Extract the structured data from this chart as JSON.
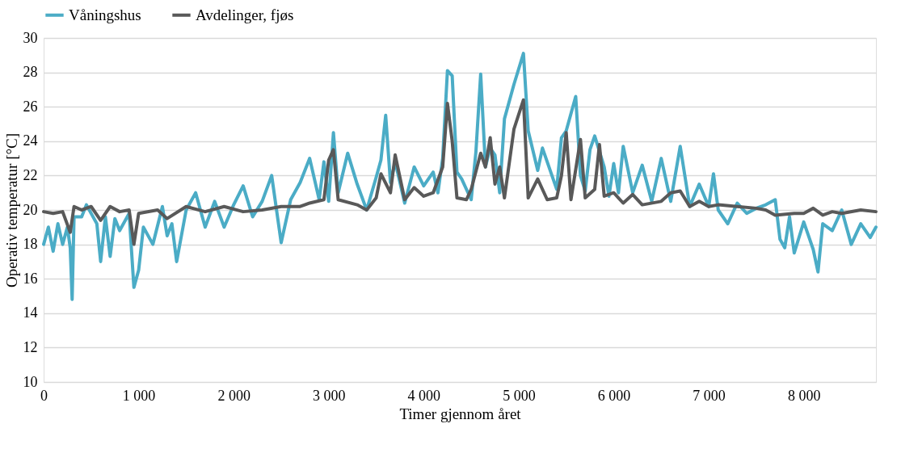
{
  "chart_data": {
    "type": "line",
    "xlabel": "Timer gjennom året",
    "ylabel": "Operativ temperatur [°C]",
    "xlim": [
      0,
      8760
    ],
    "xticks": [
      0,
      {
        "value": 1000,
        "label": "1 000"
      },
      {
        "value": 2000,
        "label": "2 000"
      },
      {
        "value": 3000,
        "label": "3 000"
      },
      {
        "value": 4000,
        "label": "4 000"
      },
      {
        "value": 5000,
        "label": "5 000"
      },
      {
        "value": 6000,
        "label": "6 000"
      },
      {
        "value": 7000,
        "label": "7 000"
      },
      {
        "value": 8000,
        "label": "8 000"
      }
    ],
    "ylim": [
      10,
      30
    ],
    "yticks": [
      10,
      12,
      14,
      16,
      18,
      20,
      22,
      24,
      26,
      28,
      30
    ],
    "grid": "y",
    "legend": "top",
    "marker": "none",
    "line_style": "solid",
    "x": [
      0,
      50,
      100,
      150,
      200,
      250,
      280,
      300,
      320,
      400,
      450,
      560,
      600,
      650,
      700,
      750,
      800,
      900,
      950,
      1000,
      1050,
      1150,
      1250,
      1300,
      1350,
      1400,
      1500,
      1600,
      1700,
      1800,
      1900,
      2000,
      2100,
      2200,
      2300,
      2400,
      2500,
      2600,
      2700,
      2800,
      2900,
      2950,
      3000,
      3050,
      3100,
      3200,
      3300,
      3400,
      3500,
      3550,
      3600,
      3650,
      3700,
      3800,
      3900,
      4000,
      4100,
      4150,
      4200,
      4250,
      4300,
      4350,
      4400,
      4500,
      4550,
      4600,
      4650,
      4700,
      4750,
      4800,
      4850,
      4950,
      5050,
      5100,
      5200,
      5250,
      5350,
      5400,
      5450,
      5500,
      5600,
      5650,
      5700,
      5750,
      5800,
      5900,
      5950,
      6000,
      6050,
      6100,
      6200,
      6300,
      6400,
      6500,
      6600,
      6700,
      6800,
      6900,
      7000,
      7050,
      7100,
      7200,
      7300,
      7400,
      7500,
      7600,
      7700,
      7750,
      7800,
      7850,
      7900,
      8000,
      8050,
      8100,
      8150,
      8200,
      8300,
      8400,
      8500,
      8600,
      8700,
      8760
    ],
    "series": [
      {
        "name": "Våningshus",
        "color": "#4bacc6",
        "values": [
          18.0,
          19.0,
          17.6,
          19.2,
          18.0,
          19.0,
          17.8,
          14.8,
          19.6,
          19.6,
          20.3,
          19.2,
          17.0,
          19.6,
          17.3,
          19.5,
          18.8,
          19.8,
          15.5,
          16.5,
          19.0,
          18.0,
          20.2,
          18.5,
          19.2,
          17.0,
          20.0,
          21.0,
          19.0,
          20.5,
          19.0,
          20.3,
          21.4,
          19.6,
          20.5,
          22.0,
          18.1,
          20.6,
          21.6,
          23.0,
          20.6,
          22.8,
          20.5,
          24.5,
          21.0,
          23.3,
          21.5,
          20.0,
          21.9,
          22.9,
          25.5,
          21.6,
          22.8,
          20.4,
          22.5,
          21.4,
          22.2,
          21.0,
          23.0,
          28.1,
          27.8,
          22.2,
          21.8,
          20.6,
          23.4,
          27.9,
          22.5,
          23.6,
          23.2,
          21.0,
          25.3,
          27.3,
          29.1,
          24.6,
          22.3,
          23.6,
          22.0,
          21.2,
          24.2,
          24.6,
          26.6,
          22.0,
          21.1,
          23.5,
          24.3,
          22.5,
          20.8,
          22.7,
          21.0,
          23.7,
          21.0,
          22.6,
          20.5,
          23.0,
          20.5,
          23.7,
          20.2,
          21.5,
          20.2,
          22.1,
          20.0,
          19.2,
          20.4,
          19.8,
          20.1,
          20.3,
          20.6,
          18.3,
          17.8,
          19.6,
          17.5,
          19.3,
          18.5,
          17.7,
          16.4,
          19.2,
          18.8,
          20.0,
          18.0,
          19.2,
          18.4,
          19.0
        ]
      },
      {
        "name": "Avdelinger, fjøs",
        "color": "#595959",
        "x": [
          0,
          100,
          200,
          280,
          320,
          400,
          500,
          600,
          700,
          800,
          900,
          950,
          1000,
          1200,
          1300,
          1500,
          1700,
          1900,
          2100,
          2300,
          2500,
          2700,
          2800,
          2950,
          3000,
          3050,
          3100,
          3300,
          3400,
          3500,
          3550,
          3650,
          3700,
          3800,
          3900,
          4000,
          4100,
          4200,
          4250,
          4300,
          4350,
          4450,
          4500,
          4600,
          4650,
          4700,
          4750,
          4800,
          4850,
          4950,
          5050,
          5100,
          5200,
          5300,
          5400,
          5450,
          5500,
          5550,
          5650,
          5700,
          5800,
          5850,
          5900,
          6000,
          6100,
          6200,
          6300,
          6500,
          6600,
          6700,
          6800,
          6900,
          7000,
          7100,
          7300,
          7500,
          7600,
          7700,
          7900,
          8000,
          8100,
          8200,
          8300,
          8400,
          8600,
          8760
        ],
        "values": [
          19.9,
          19.8,
          19.9,
          18.7,
          20.2,
          20.0,
          20.2,
          19.4,
          20.2,
          19.9,
          20.0,
          18.0,
          19.8,
          20.0,
          19.5,
          20.2,
          19.9,
          20.2,
          19.9,
          20.0,
          20.2,
          20.2,
          20.4,
          20.6,
          22.9,
          23.5,
          20.6,
          20.3,
          20.0,
          20.7,
          22.1,
          21.0,
          23.2,
          20.6,
          21.3,
          20.8,
          21.0,
          22.5,
          26.2,
          24.0,
          20.7,
          20.6,
          21.2,
          23.3,
          22.5,
          24.2,
          21.5,
          22.5,
          20.7,
          24.7,
          26.4,
          20.7,
          21.8,
          20.6,
          20.7,
          22.0,
          24.5,
          20.6,
          24.1,
          20.7,
          21.2,
          23.8,
          20.8,
          21.0,
          20.4,
          20.9,
          20.3,
          20.5,
          21.0,
          21.1,
          20.2,
          20.5,
          20.2,
          20.3,
          20.2,
          20.1,
          20.0,
          19.7,
          19.8,
          19.8,
          20.1,
          19.7,
          19.9,
          19.8,
          20.0,
          19.9
        ]
      }
    ]
  }
}
